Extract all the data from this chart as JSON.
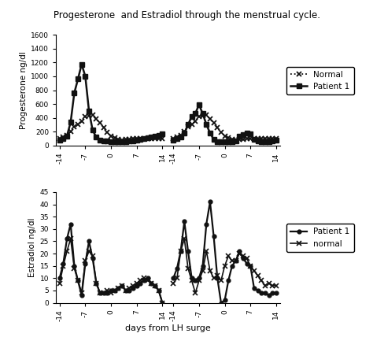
{
  "title": "Progesterone  and Estradiol through the menstrual cycle.",
  "prog_ylabel": "Progesterone ng/dl",
  "est_ylabel": "Estradiol ng/dl",
  "xlabel": "days from LH surge",
  "prog_ylim": [
    0,
    1600
  ],
  "prog_yticks": [
    0,
    200,
    400,
    600,
    800,
    1000,
    1200,
    1400,
    1600
  ],
  "est_ylim": [
    0,
    45
  ],
  "est_yticks": [
    0,
    5,
    10,
    15,
    20,
    25,
    30,
    35,
    40,
    45
  ],
  "line_color": "#111111",
  "tick_labels_cycle1": [
    "-14",
    "-7",
    "0",
    "7",
    "14"
  ],
  "tick_labels_cycle2": [
    "-14",
    "-7",
    "0",
    "7",
    "14"
  ],
  "prog_norm_y1": [
    100,
    120,
    150,
    200,
    270,
    310,
    350,
    415,
    430,
    445,
    380,
    330,
    260,
    190,
    140,
    110,
    90,
    80,
    85,
    90,
    95,
    100,
    100,
    105,
    100,
    100,
    100,
    100,
    100
  ],
  "prog_norm_y2": [
    100,
    120,
    150,
    200,
    270,
    310,
    350,
    415,
    430,
    445,
    380,
    330,
    260,
    190,
    140,
    110,
    90,
    80,
    85,
    90,
    95,
    100,
    100,
    105,
    100,
    100,
    100,
    100,
    100
  ],
  "prog_pat_y1": [
    80,
    100,
    140,
    335,
    760,
    960,
    1175,
    1000,
    500,
    220,
    120,
    80,
    70,
    65,
    60,
    60,
    60,
    60,
    60,
    65,
    70,
    80,
    90,
    100,
    110,
    120,
    130,
    145,
    170
  ],
  "prog_pat_y2": [
    80,
    100,
    120,
    180,
    300,
    420,
    465,
    590,
    460,
    305,
    180,
    90,
    60,
    55,
    55,
    55,
    60,
    65,
    140,
    160,
    175,
    165,
    90,
    65,
    60,
    60,
    60,
    70,
    80
  ],
  "est_pat_y1": [
    10,
    16,
    26,
    32,
    15,
    9,
    3,
    16,
    25,
    18,
    8,
    4,
    4,
    4,
    5,
    5,
    6,
    7,
    5,
    5,
    6,
    7,
    8,
    9,
    10,
    8,
    7,
    5,
    0
  ],
  "est_pat_y2": [
    10,
    14,
    21,
    33,
    21,
    10,
    9,
    10,
    15,
    32,
    41,
    27,
    10,
    0,
    1,
    9,
    15,
    17,
    21,
    18,
    16,
    15,
    6,
    5,
    4,
    4,
    3,
    4,
    4
  ],
  "est_norm_y1": [
    8,
    15,
    21,
    26,
    14,
    9,
    4,
    17,
    21,
    19,
    8,
    4,
    4,
    5,
    4,
    5,
    6,
    7,
    5,
    6,
    7,
    8,
    9,
    10,
    9,
    8,
    7,
    5,
    0
  ],
  "est_norm_y2": [
    8,
    10,
    21,
    26,
    14,
    9,
    4,
    9,
    13,
    21,
    13,
    10,
    11,
    9,
    15,
    19,
    17,
    17,
    20,
    19,
    18,
    15,
    13,
    11,
    9,
    7,
    8,
    7,
    7
  ]
}
